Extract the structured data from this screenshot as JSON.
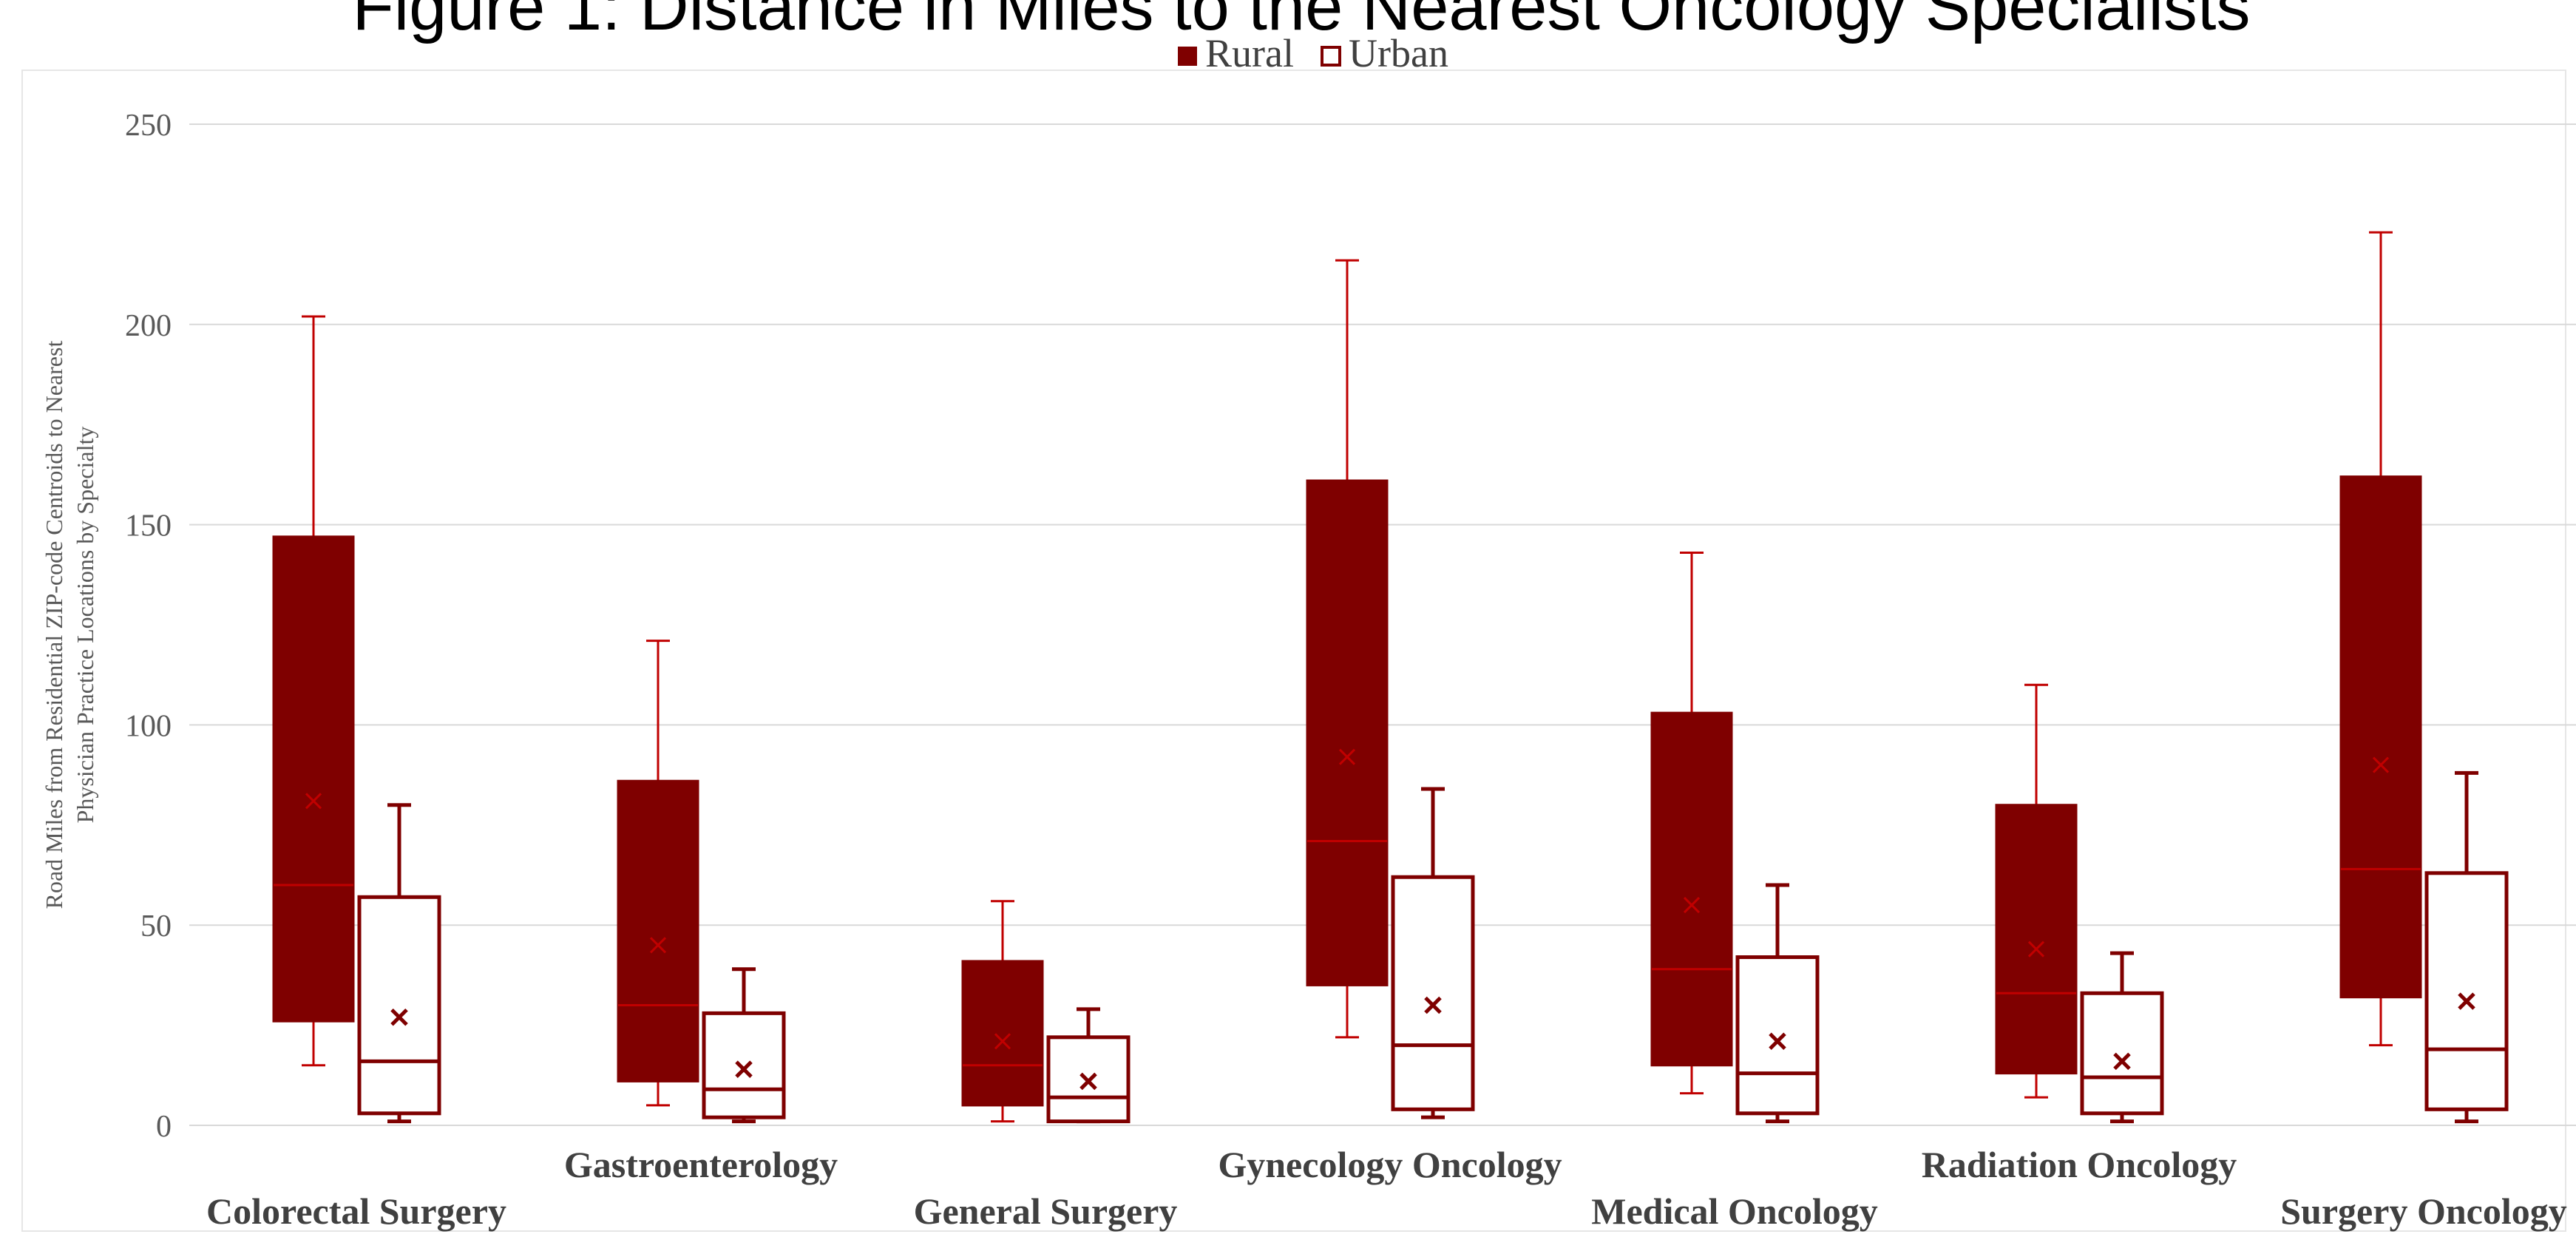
{
  "page": {
    "heading": "Figure 1: Distance in Miles to the Nearest Oncology Specialists"
  },
  "colors": {
    "rural_fill": "#7F0000",
    "rural_inner": "#C00000",
    "urban_stroke": "#7F0000",
    "grid": "#D9D9D9",
    "tick_text": "#595959"
  },
  "chart_data": {
    "type": "box",
    "title": "",
    "ylabel": "Road Miles from Residential ZIP-code Centroids to Nearest Physician Practice Locations by Specialty",
    "ylabel_lines": [
      "Road Miles from Residential ZIP-code Centroids to Nearest",
      "Physician Practice Locations by Specialty"
    ],
    "xlabel": "",
    "ylim": [
      0,
      250
    ],
    "yticks": [
      0,
      50,
      100,
      150,
      200,
      250
    ],
    "grid": true,
    "legend_position": "top-center",
    "categories": [
      "Colorectal Surgery",
      "Gastroenterology",
      "General Surgery",
      "Gynecology Oncology",
      "Medical Oncology",
      "Radiation Oncology",
      "Surgery Oncology"
    ],
    "series": [
      {
        "name": "Rural",
        "style": "filled",
        "boxes": [
          {
            "min": 15,
            "q1": 26,
            "median": 60,
            "q3": 147,
            "max": 202,
            "mean": 81
          },
          {
            "min": 5,
            "q1": 11,
            "median": 30,
            "q3": 86,
            "max": 121,
            "mean": 45
          },
          {
            "min": 1,
            "q1": 5,
            "median": 15,
            "q3": 41,
            "max": 56,
            "mean": 21
          },
          {
            "min": 22,
            "q1": 35,
            "median": 71,
            "q3": 161,
            "max": 216,
            "mean": 92
          },
          {
            "min": 8,
            "q1": 15,
            "median": 39,
            "q3": 103,
            "max": 143,
            "mean": 55
          },
          {
            "min": 7,
            "q1": 13,
            "median": 33,
            "q3": 80,
            "max": 110,
            "mean": 44
          },
          {
            "min": 20,
            "q1": 32,
            "median": 64,
            "q3": 162,
            "max": 223,
            "mean": 90
          }
        ]
      },
      {
        "name": "Urban",
        "style": "outline",
        "boxes": [
          {
            "min": 1,
            "q1": 3,
            "median": 16,
            "q3": 57,
            "max": 80,
            "mean": 27
          },
          {
            "min": 1,
            "q1": 2,
            "median": 9,
            "q3": 28,
            "max": 39,
            "mean": 14
          },
          {
            "min": 1,
            "q1": 1,
            "median": 7,
            "q3": 22,
            "max": 29,
            "mean": 11
          },
          {
            "min": 2,
            "q1": 4,
            "median": 20,
            "q3": 62,
            "max": 84,
            "mean": 30
          },
          {
            "min": 1,
            "q1": 3,
            "median": 13,
            "q3": 42,
            "max": 60,
            "mean": 21
          },
          {
            "min": 1,
            "q1": 3,
            "median": 12,
            "q3": 33,
            "max": 43,
            "mean": 16
          },
          {
            "min": 1,
            "q1": 4,
            "median": 19,
            "q3": 63,
            "max": 88,
            "mean": 31
          }
        ]
      }
    ]
  }
}
